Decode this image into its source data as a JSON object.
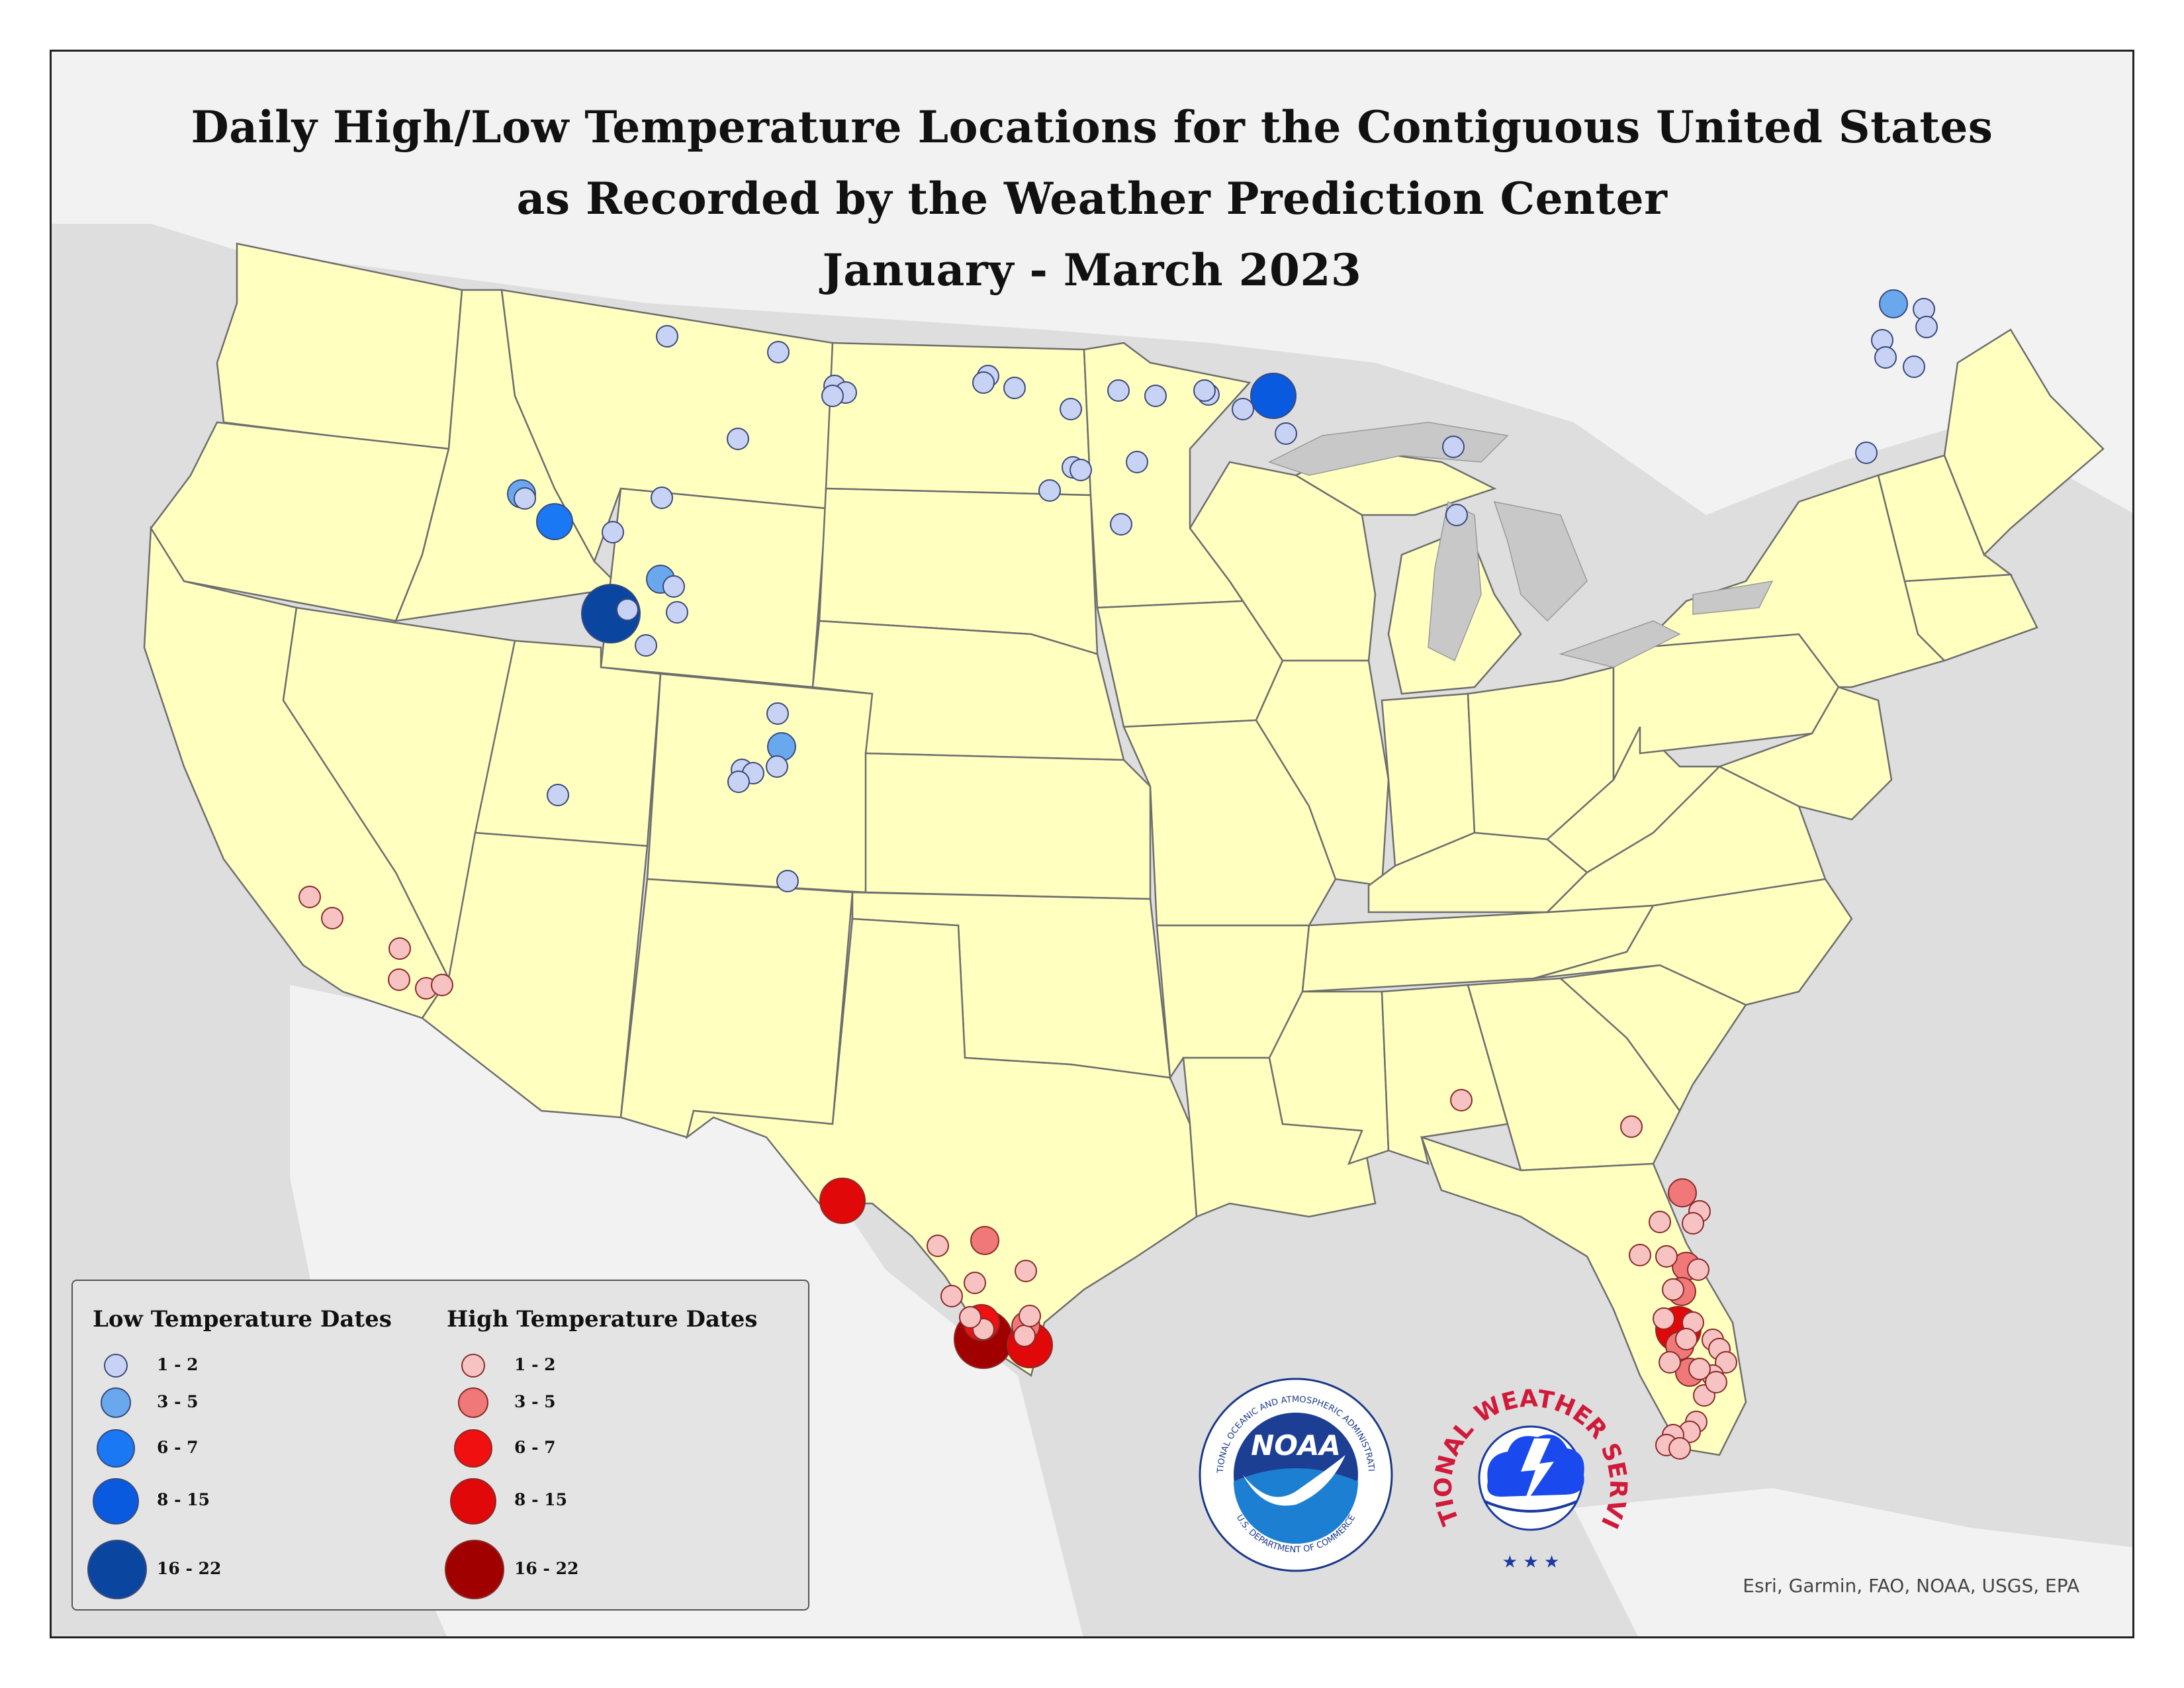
{
  "title": {
    "line1": "Daily High/Low Temperature Locations for the Contiguous United States",
    "line2": "as Recorded by the Weather Prediction Center",
    "line3": "January - March 2023"
  },
  "legend": {
    "low_heading": "Low Temperature Dates",
    "high_heading": "High Temperature Dates",
    "classes": [
      "1 - 2",
      "3 - 5",
      "6 - 7",
      "8 - 15",
      "16 - 22"
    ],
    "low_colors": [
      "#c8d2f5",
      "#6aa8ee",
      "#1a78f5",
      "#0a5ae0",
      "#0a46a0"
    ],
    "high_colors": [
      "#f7c2c2",
      "#f07878",
      "#f01010",
      "#e00808",
      "#a00000"
    ]
  },
  "logos": {
    "noaa_text": "NOAA",
    "noaa_ring": "NATIONAL OCEANIC AND ATMOSPHERIC ADMINISTRATION",
    "noaa_dept": "U.S. DEPARTMENT OF COMMERCE",
    "nws_ring": "NATIONAL WEATHER SERVICE"
  },
  "credit": "Esri, Garmin, FAO, NOAA, USGS, EPA",
  "colors": {
    "state_fill": "#ffffc0",
    "background": "#dedede",
    "low_accent": "#0a5ae0",
    "high_accent": "#e00808"
  }
}
